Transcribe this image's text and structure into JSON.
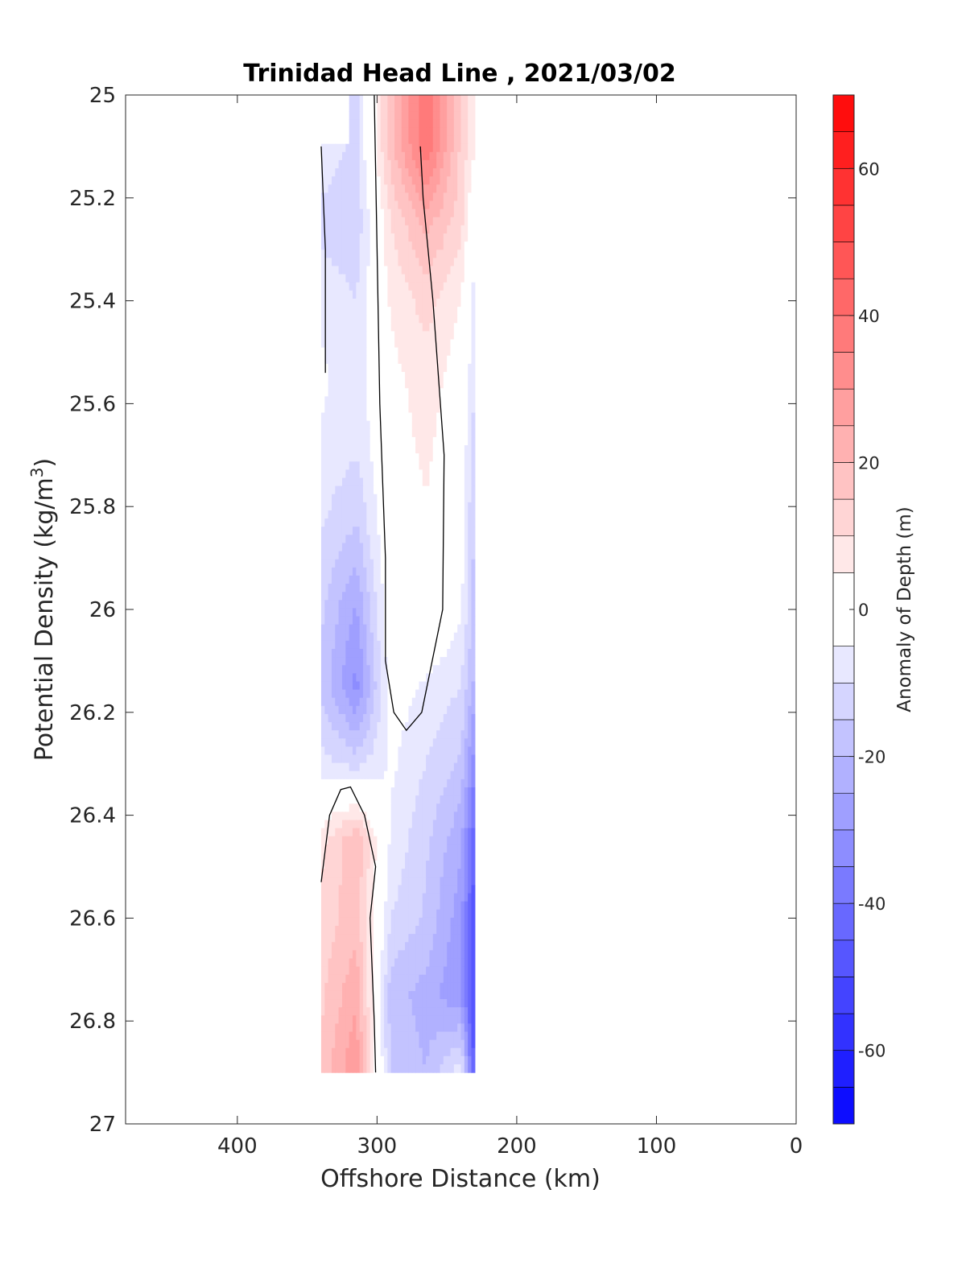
{
  "chart_data": {
    "type": "heatmap",
    "subtype": "filled-contour",
    "title": "Trinidad Head Line , 2021/03/02",
    "xlabel": "Offshore Distance (km)",
    "ylabel": "Potential Density (kg/m",
    "ylabel_sup": "3",
    "ylabel_close": ")",
    "xlim": [
      480,
      0
    ],
    "x_reversed": true,
    "ylim": [
      25,
      27
    ],
    "y_reversed": true,
    "xticks": [
      400,
      300,
      200,
      100,
      0
    ],
    "xtick_labels": [
      "400",
      "300",
      "200",
      "100",
      "0"
    ],
    "yticks": [
      25,
      25.2,
      25.4,
      25.6,
      25.8,
      26,
      26.2,
      26.4,
      26.6,
      26.8,
      27
    ],
    "ytick_labels": [
      "25",
      "25.2",
      "25.4",
      "25.6",
      "25.8",
      "26",
      "26.2",
      "26.4",
      "26.6",
      "26.8",
      "27"
    ],
    "x": [
      340,
      315,
      290,
      265,
      240,
      230
    ],
    "y": [
      25.1,
      25.25,
      25.4,
      25.55,
      25.7,
      25.85,
      26.0,
      26.15,
      26.3,
      26.45,
      26.6,
      26.75,
      26.9
    ],
    "z_units": "m",
    "z": [
      [
        -6,
        -12,
        18,
        40,
        14,
        5
      ],
      [
        -12,
        -14,
        10,
        22,
        12,
        -3
      ],
      [
        -6,
        -10,
        6,
        12,
        5,
        -8
      ],
      [
        -4,
        -8,
        3,
        8,
        2,
        -10
      ],
      [
        -6,
        -10,
        2,
        6,
        0,
        -14
      ],
      [
        -10,
        -16,
        1,
        4,
        -2,
        -16
      ],
      [
        -14,
        -26,
        1,
        3,
        -4,
        -18
      ],
      [
        -16,
        -32,
        -2,
        -6,
        -10,
        -22
      ],
      [
        -8,
        -12,
        -4,
        -10,
        -16,
        -34
      ],
      [
        8,
        20,
        -6,
        -14,
        -24,
        -44
      ],
      [
        12,
        18,
        -10,
        -16,
        -28,
        -50
      ],
      [
        14,
        24,
        -18,
        -22,
        -30,
        -52
      ],
      [
        16,
        30,
        -16,
        -20,
        -6,
        -48
      ]
    ],
    "mask_top_cut": {
      "density": 25.1,
      "x_from": 340,
      "x_to": 320
    },
    "contour_levels": [
      -70,
      -65,
      -60,
      -55,
      -50,
      -45,
      -40,
      -35,
      -30,
      -25,
      -20,
      -15,
      -10,
      -5,
      5,
      10,
      15,
      20,
      25,
      30,
      35,
      40,
      45,
      50,
      55,
      60,
      65,
      70
    ],
    "zero_contour_line": true,
    "colorbar": {
      "label": "Anomaly of Depth (m)",
      "range": [
        -70,
        70
      ],
      "ticks": [
        60,
        40,
        20,
        0,
        -20,
        -40,
        -60
      ],
      "tick_labels": [
        "60",
        "40",
        "20",
        "0",
        "-20",
        "-40",
        "-60"
      ],
      "low_color": "#0000ff",
      "high_color": "#ff0000"
    }
  }
}
